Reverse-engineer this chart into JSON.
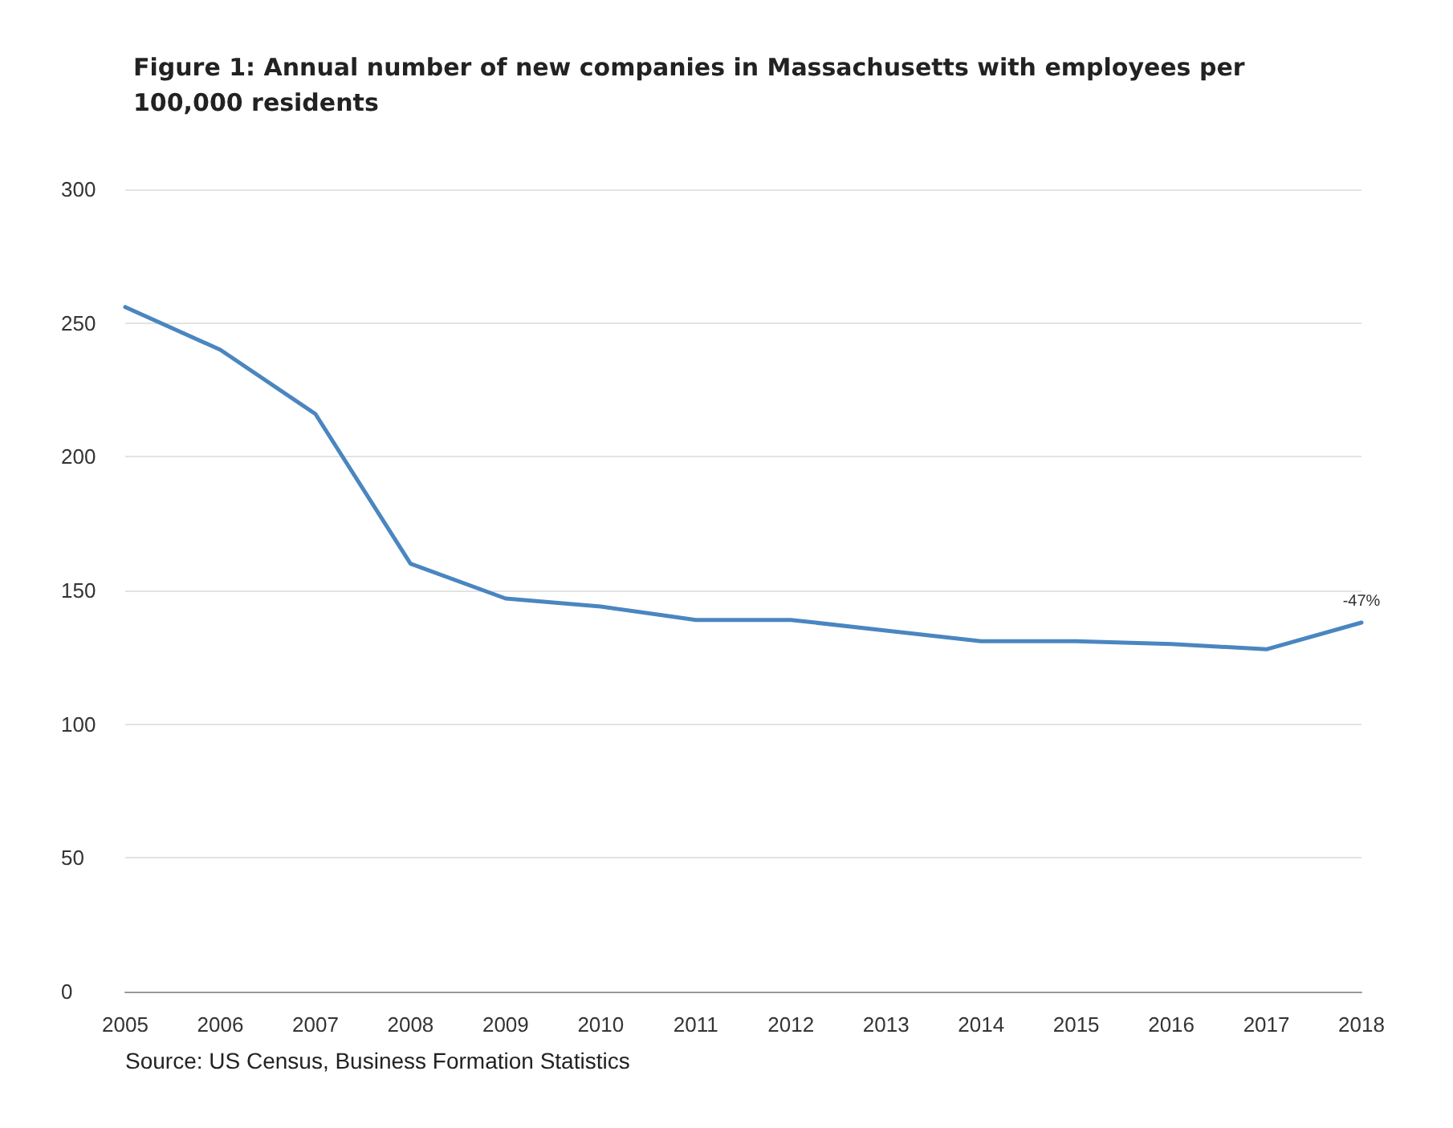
{
  "chart_data": {
    "type": "line",
    "title": "Figure 1: Annual number of new companies in Massachusetts with employees per 100,000 residents",
    "categories": [
      "2005",
      "2006",
      "2007",
      "2008",
      "2009",
      "2010",
      "2011",
      "2012",
      "2013",
      "2014",
      "2015",
      "2016",
      "2017",
      "2018"
    ],
    "series": [
      {
        "color": "#4a86c0",
        "values": [
          256,
          240,
          216,
          160,
          147,
          144,
          139,
          139,
          135,
          131,
          131,
          130,
          128,
          138
        ]
      }
    ],
    "ylim": [
      0,
      300
    ],
    "yticks": [
      0,
      50,
      100,
      150,
      200,
      250,
      300
    ],
    "grid": "y",
    "marker": "none",
    "line_style": "solid",
    "annotations": [
      {
        "text": "-47%",
        "x": "2018",
        "y": 138
      },
      "Source: US Census, Business Formation Statistics"
    ]
  }
}
